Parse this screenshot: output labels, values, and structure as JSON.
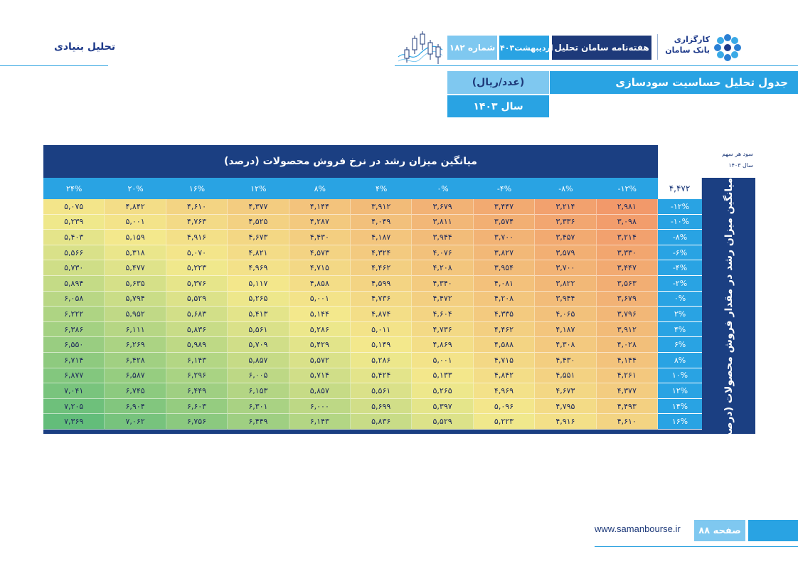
{
  "header": {
    "section_title": "تحلیل بنیادی",
    "brand_line1": "کارگزاری",
    "brand_line2": "بانک سامان",
    "weekly": "هفته‌نامه سامان تحلیل",
    "date": "اردیبهشت۱۴۰۳",
    "issue": "شماره ۱۸۲"
  },
  "table_header": {
    "title": "جدول تحلیل حساسیت سودسازی",
    "unit": "(عدد/ریال)",
    "year": "سال ۱۴۰۳"
  },
  "table": {
    "growth_title": "میانگین میزان رشد در نرخ فروش محصولات (درصد)",
    "side_title": "میانگین میزان رشد در مقدار فروش محصولات (درصد)",
    "eps_label": "سود هر سهم",
    "eps_year": "سال ۱۴۰۳",
    "base_value": "۴,۴۷۲",
    "columns": [
      "-۱۲%",
      "-۸%",
      "-۴%",
      "۰%",
      "۴%",
      "۸%",
      "۱۲%",
      "۱۶%",
      "۲۰%",
      "۲۴%"
    ],
    "rows": [
      {
        "label": "-۱۲%",
        "values": [
          "۲,۹۸۱",
          "۳,۲۱۴",
          "۳,۴۴۷",
          "۳,۶۷۹",
          "۳,۹۱۲",
          "۴,۱۴۴",
          "۴,۳۷۷",
          "۴,۶۱۰",
          "۴,۸۴۲",
          "۵,۰۷۵"
        ]
      },
      {
        "label": "-۱۰%",
        "values": [
          "۳,۰۹۸",
          "۳,۳۳۶",
          "۳,۵۷۴",
          "۳,۸۱۱",
          "۴,۰۴۹",
          "۴,۲۸۷",
          "۴,۵۲۵",
          "۴,۷۶۳",
          "۵,۰۰۱",
          "۵,۲۳۹"
        ]
      },
      {
        "label": "-۸%",
        "values": [
          "۳,۲۱۴",
          "۳,۴۵۷",
          "۳,۷۰۰",
          "۳,۹۴۴",
          "۴,۱۸۷",
          "۴,۴۳۰",
          "۴,۶۷۳",
          "۴,۹۱۶",
          "۵,۱۵۹",
          "۵,۴۰۳"
        ]
      },
      {
        "label": "-۶%",
        "values": [
          "۳,۳۳۰",
          "۳,۵۷۹",
          "۳,۸۲۷",
          "۴,۰۷۶",
          "۴,۳۲۴",
          "۴,۵۷۳",
          "۴,۸۲۱",
          "۵,۰۷۰",
          "۵,۳۱۸",
          "۵,۵۶۶"
        ]
      },
      {
        "label": "-۴%",
        "values": [
          "۳,۴۴۷",
          "۳,۷۰۰",
          "۳,۹۵۴",
          "۴,۲۰۸",
          "۴,۴۶۲",
          "۴,۷۱۵",
          "۴,۹۶۹",
          "۵,۲۲۳",
          "۵,۴۷۷",
          "۵,۷۳۰"
        ]
      },
      {
        "label": "-۲%",
        "values": [
          "۳,۵۶۳",
          "۳,۸۲۲",
          "۴,۰۸۱",
          "۴,۳۴۰",
          "۴,۵۹۹",
          "۴,۸۵۸",
          "۵,۱۱۷",
          "۵,۳۷۶",
          "۵,۶۳۵",
          "۵,۸۹۴"
        ]
      },
      {
        "label": "۰%",
        "values": [
          "۳,۶۷۹",
          "۳,۹۴۴",
          "۴,۲۰۸",
          "۴,۴۷۲",
          "۴,۷۳۶",
          "۵,۰۰۱",
          "۵,۲۶۵",
          "۵,۵۲۹",
          "۵,۷۹۴",
          "۶,۰۵۸"
        ]
      },
      {
        "label": "۲%",
        "values": [
          "۳,۷۹۶",
          "۴,۰۶۵",
          "۴,۳۳۵",
          "۴,۶۰۴",
          "۴,۸۷۴",
          "۵,۱۴۴",
          "۵,۴۱۳",
          "۵,۶۸۳",
          "۵,۹۵۲",
          "۶,۲۲۲"
        ]
      },
      {
        "label": "۴%",
        "values": [
          "۳,۹۱۲",
          "۴,۱۸۷",
          "۴,۴۶۲",
          "۴,۷۳۶",
          "۵,۰۱۱",
          "۵,۲۸۶",
          "۵,۵۶۱",
          "۵,۸۳۶",
          "۶,۱۱۱",
          "۶,۳۸۶"
        ]
      },
      {
        "label": "۶%",
        "values": [
          "۴,۰۲۸",
          "۴,۳۰۸",
          "۴,۵۸۸",
          "۴,۸۶۹",
          "۵,۱۴۹",
          "۵,۴۲۹",
          "۵,۷۰۹",
          "۵,۹۸۹",
          "۶,۲۶۹",
          "۶,۵۵۰"
        ]
      },
      {
        "label": "۸%",
        "values": [
          "۴,۱۴۴",
          "۴,۴۳۰",
          "۴,۷۱۵",
          "۵,۰۰۱",
          "۵,۲۸۶",
          "۵,۵۷۲",
          "۵,۸۵۷",
          "۶,۱۴۳",
          "۶,۴۲۸",
          "۶,۷۱۴"
        ]
      },
      {
        "label": "۱۰%",
        "values": [
          "۴,۲۶۱",
          "۴,۵۵۱",
          "۴,۸۴۲",
          "۵,۱۳۳",
          "۵,۴۲۴",
          "۵,۷۱۴",
          "۶,۰۰۵",
          "۶,۲۹۶",
          "۶,۵۸۷",
          "۶,۸۷۷"
        ]
      },
      {
        "label": "۱۲%",
        "values": [
          "۴,۳۷۷",
          "۴,۶۷۳",
          "۴,۹۶۹",
          "۵,۲۶۵",
          "۵,۵۶۱",
          "۵,۸۵۷",
          "۶,۱۵۳",
          "۶,۴۴۹",
          "۶,۷۴۵",
          "۷,۰۴۱"
        ]
      },
      {
        "label": "۱۴%",
        "values": [
          "۴,۴۹۳",
          "۴,۷۹۵",
          "۵,۰۹۶",
          "۵,۳۹۷",
          "۵,۶۹۹",
          "۶,۰۰۰",
          "۶,۳۰۱",
          "۶,۶۰۳",
          "۶,۹۰۴",
          "۷,۲۰۵"
        ]
      },
      {
        "label": "۱۶%",
        "values": [
          "۴,۶۱۰",
          "۴,۹۱۶",
          "۵,۲۲۳",
          "۵,۵۲۹",
          "۵,۸۳۶",
          "۶,۱۴۳",
          "۶,۴۴۹",
          "۶,۷۵۶",
          "۷,۰۶۲",
          "۷,۳۶۹"
        ]
      }
    ]
  },
  "footer": {
    "page": "صفحه ۸۸",
    "site": "www.samanbourse.ir"
  },
  "colors": {
    "navy": "#1b3f82",
    "blue": "#29a3e3",
    "light_blue": "#7fc8f0",
    "heat_low": "#f2996a",
    "heat_mid": "#f3e98c",
    "heat_high": "#63bd7a"
  }
}
